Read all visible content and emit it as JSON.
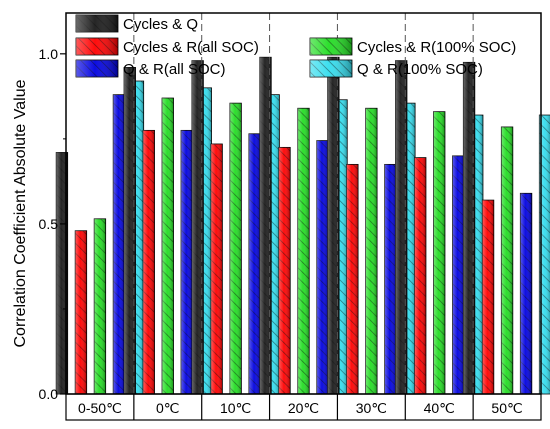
{
  "chart_data": {
    "type": "bar",
    "title": "",
    "xlabel": "",
    "ylabel": "Correlation Coefficient Absolute Value",
    "ylim": [
      0,
      1.12
    ],
    "yticks": [
      0.0,
      0.5,
      1.0
    ],
    "ytick_labels": [
      "0.0",
      "0.5",
      "1.0"
    ],
    "categories": [
      "0-50℃",
      "0℃",
      "10℃",
      "20℃",
      "30℃",
      "40℃",
      "50℃"
    ],
    "grid": false,
    "group_separators": "dashed-vertical",
    "legend_position": "top",
    "series": [
      {
        "name": "Cycles & Q",
        "color": "#1a1a1a",
        "values": [
          0.71,
          0.96,
          0.98,
          0.99,
          0.99,
          0.98,
          0.975
        ]
      },
      {
        "name": "Cycles & R(all SOC)",
        "color": "#ff0000",
        "values": [
          0.48,
          0.775,
          0.735,
          0.725,
          0.675,
          0.695,
          0.57
        ]
      },
      {
        "name": "Cycles & R(100% SOC)",
        "color": "#22dd22",
        "values": [
          0.515,
          0.87,
          0.855,
          0.84,
          0.84,
          0.83,
          0.785
        ]
      },
      {
        "name": "Q & R(all SOC)",
        "color": "#0000e0",
        "values": [
          0.88,
          0.775,
          0.765,
          0.745,
          0.675,
          0.7,
          0.59
        ]
      },
      {
        "name": "Q & R(100% SOC)",
        "color": "#33ddee",
        "values": [
          0.92,
          0.9,
          0.88,
          0.865,
          0.855,
          0.82,
          0.82
        ]
      }
    ]
  }
}
